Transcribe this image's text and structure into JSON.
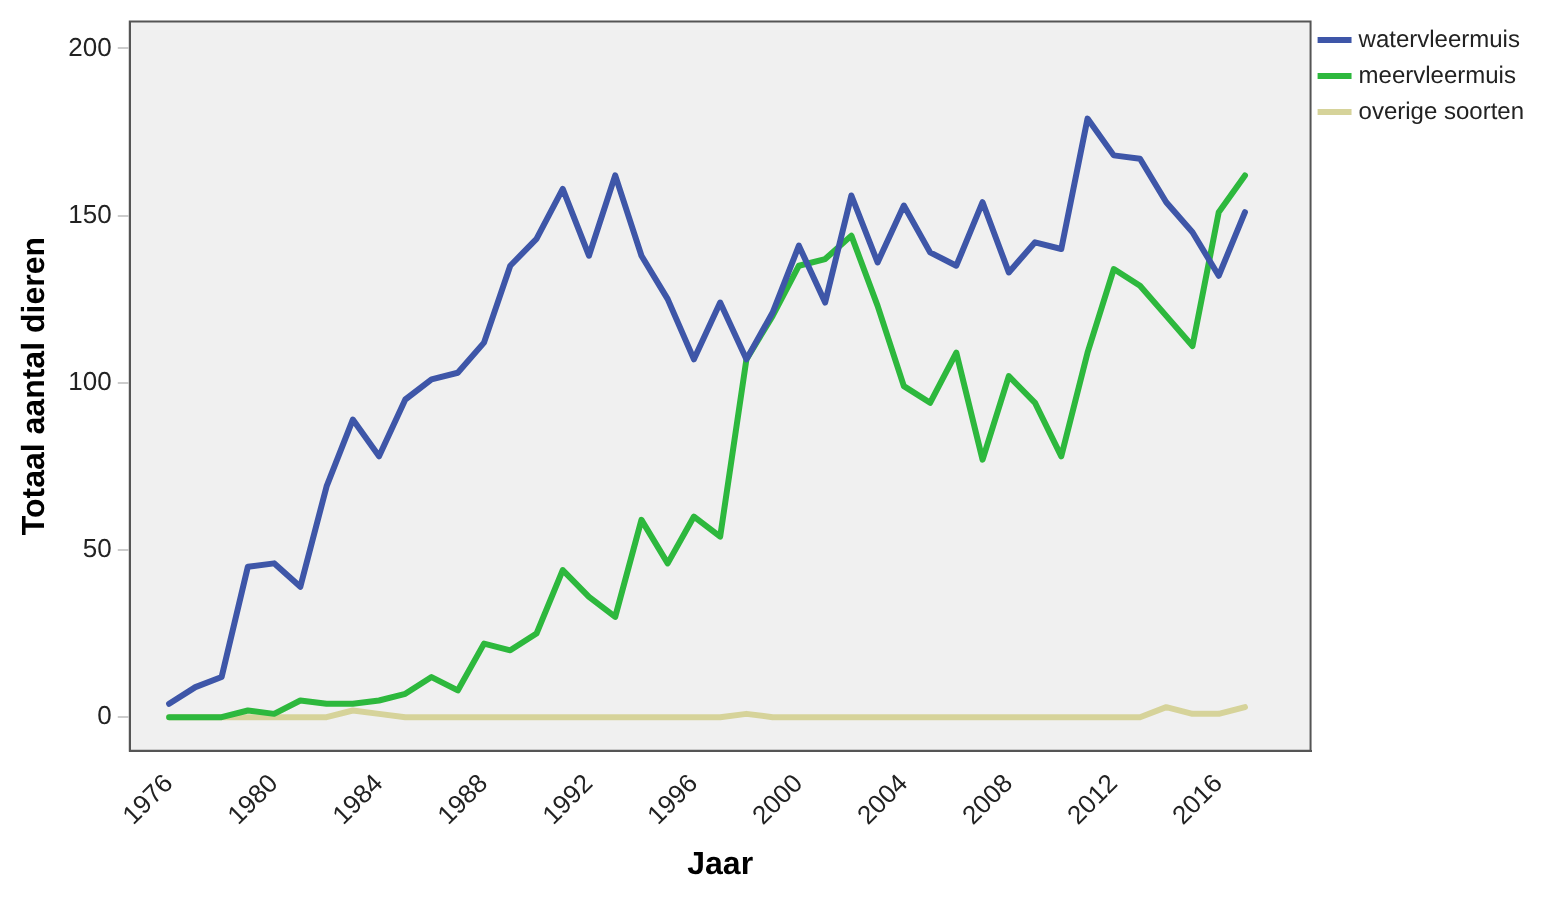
{
  "chart_data": {
    "type": "line",
    "xlabel": "Jaar",
    "ylabel": "Totaal aantal dieren",
    "x": [
      1976,
      1977,
      1978,
      1979,
      1980,
      1981,
      1982,
      1983,
      1984,
      1985,
      1986,
      1987,
      1988,
      1989,
      1990,
      1991,
      1992,
      1993,
      1994,
      1995,
      1996,
      1997,
      1998,
      1999,
      2000,
      2001,
      2002,
      2003,
      2004,
      2005,
      2006,
      2007,
      2008,
      2009,
      2010,
      2011,
      2012,
      2013,
      2014,
      2015,
      2016,
      2017
    ],
    "series": [
      {
        "name": "watervleermuis",
        "color": "#3e56a8",
        "values": [
          4,
          9,
          12,
          45,
          46,
          39,
          69,
          89,
          78,
          95,
          101,
          103,
          112,
          135,
          143,
          158,
          138,
          162,
          138,
          125,
          107,
          124,
          107,
          121,
          141,
          124,
          156,
          136,
          153,
          139,
          135,
          154,
          133,
          142,
          140,
          179,
          168,
          167,
          154,
          145,
          132,
          151
        ]
      },
      {
        "name": "meervleermuis",
        "color": "#2db83d",
        "values": [
          0,
          0,
          0,
          2,
          1,
          5,
          4,
          4,
          5,
          7,
          12,
          8,
          22,
          20,
          25,
          44,
          36,
          30,
          59,
          46,
          60,
          54,
          107,
          120,
          135,
          137,
          144,
          123,
          99,
          94,
          109,
          77,
          102,
          94,
          78,
          109,
          134,
          129,
          120,
          111,
          151,
          162
        ]
      },
      {
        "name": "overige soorten",
        "color": "#d6d39a",
        "values": [
          0,
          0,
          0,
          0,
          0,
          0,
          0,
          2,
          1,
          0,
          0,
          0,
          0,
          0,
          0,
          0,
          0,
          0,
          0,
          0,
          0,
          0,
          1,
          0,
          0,
          0,
          0,
          0,
          0,
          0,
          0,
          0,
          0,
          0,
          0,
          0,
          0,
          0,
          3,
          1,
          1,
          3
        ]
      }
    ],
    "xlim": [
      1974.5,
      2019.5
    ],
    "xticks": [
      1976,
      1980,
      1984,
      1988,
      1992,
      1996,
      2000,
      2004,
      2008,
      2012,
      2016
    ],
    "ylim": [
      -10,
      208
    ],
    "yticks": [
      0,
      50,
      100,
      150,
      200
    ],
    "grid": false,
    "legend": "top right",
    "marker": "none",
    "line_style": "solid"
  }
}
